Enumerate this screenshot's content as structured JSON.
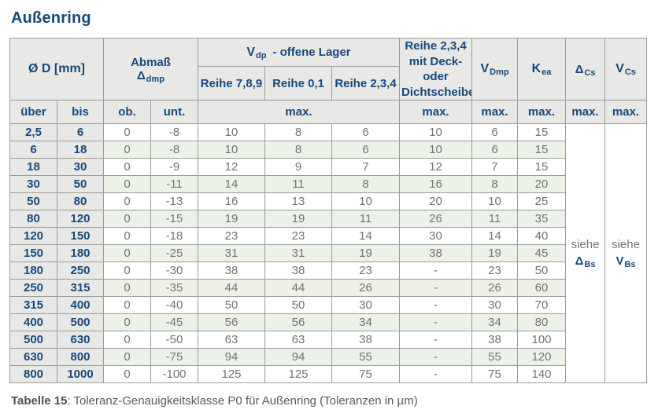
{
  "title": "Außenring",
  "caption": {
    "label": "Tabelle 15",
    "text": ": Toleranz-Genauigkeitsklasse P0 für Außenring (Toleranzen in µm)"
  },
  "colors": {
    "navy": "#17497B",
    "header_bg": "#E8E8E6",
    "row_green": "#ECF2E8",
    "data_text": "#737373",
    "border": "#9C9C99"
  },
  "table": {
    "header": {
      "diameter": "Ø D  [mm]",
      "abmass": {
        "line1": "Abmaß",
        "sym": "Δ",
        "sub": "dmp"
      },
      "vdp_group": {
        "sym": "V",
        "sub": "dp",
        "rest": "-  offene Lager"
      },
      "reihe_cols": [
        "Reihe 7,8,9",
        "Reihe 0,1",
        "Reihe 2,3,4"
      ],
      "deck": [
        "Reihe 2,3,4",
        "mit Deck- oder",
        "Dichtscheiben"
      ],
      "vdmp": {
        "sym": "V",
        "sub": "Dmp"
      },
      "kea": {
        "sym": "K",
        "sub": "ea"
      },
      "dcs": {
        "sym": "Δ",
        "sub": "Cs"
      },
      "vcs": {
        "sym": "V",
        "sub": "Cs"
      },
      "ueber": "über",
      "bis": "bis",
      "ob": "ob.",
      "unt": "unt.",
      "max": "max."
    },
    "rows": [
      {
        "ueber": "2,5",
        "bis": "6",
        "ob": "0",
        "unt": "-8",
        "reihe789": "10",
        "reihe01": "8",
        "reihe234": "6",
        "deck": "10",
        "vdmp": "6",
        "kea": "15"
      },
      {
        "ueber": "6",
        "bis": "18",
        "ob": "0",
        "unt": "-8",
        "reihe789": "10",
        "reihe01": "8",
        "reihe234": "6",
        "deck": "10",
        "vdmp": "6",
        "kea": "15"
      },
      {
        "ueber": "18",
        "bis": "30",
        "ob": "0",
        "unt": "-9",
        "reihe789": "12",
        "reihe01": "9",
        "reihe234": "7",
        "deck": "12",
        "vdmp": "7",
        "kea": "15"
      },
      {
        "ueber": "30",
        "bis": "50",
        "ob": "0",
        "unt": "-11",
        "reihe789": "14",
        "reihe01": "11",
        "reihe234": "8",
        "deck": "16",
        "vdmp": "8",
        "kea": "20"
      },
      {
        "ueber": "50",
        "bis": "80",
        "ob": "0",
        "unt": "-13",
        "reihe789": "16",
        "reihe01": "13",
        "reihe234": "10",
        "deck": "20",
        "vdmp": "10",
        "kea": "25"
      },
      {
        "ueber": "80",
        "bis": "120",
        "ob": "0",
        "unt": "-15",
        "reihe789": "19",
        "reihe01": "19",
        "reihe234": "11",
        "deck": "26",
        "vdmp": "11",
        "kea": "35"
      },
      {
        "ueber": "120",
        "bis": "150",
        "ob": "0",
        "unt": "-18",
        "reihe789": "23",
        "reihe01": "23",
        "reihe234": "14",
        "deck": "30",
        "vdmp": "14",
        "kea": "40"
      },
      {
        "ueber": "150",
        "bis": "180",
        "ob": "0",
        "unt": "-25",
        "reihe789": "31",
        "reihe01": "31",
        "reihe234": "19",
        "deck": "38",
        "vdmp": "19",
        "kea": "45"
      },
      {
        "ueber": "180",
        "bis": "250",
        "ob": "0",
        "unt": "-30",
        "reihe789": "38",
        "reihe01": "38",
        "reihe234": "23",
        "deck": "-",
        "vdmp": "23",
        "kea": "50"
      },
      {
        "ueber": "250",
        "bis": "315",
        "ob": "0",
        "unt": "-35",
        "reihe789": "44",
        "reihe01": "44",
        "reihe234": "26",
        "deck": "-",
        "vdmp": "26",
        "kea": "60"
      },
      {
        "ueber": "315",
        "bis": "400",
        "ob": "0",
        "unt": "-40",
        "reihe789": "50",
        "reihe01": "50",
        "reihe234": "30",
        "deck": "-",
        "vdmp": "30",
        "kea": "70"
      },
      {
        "ueber": "400",
        "bis": "500",
        "ob": "0",
        "unt": "-45",
        "reihe789": "56",
        "reihe01": "56",
        "reihe234": "34",
        "deck": "-",
        "vdmp": "34",
        "kea": "80"
      },
      {
        "ueber": "500",
        "bis": "630",
        "ob": "0",
        "unt": "-50",
        "reihe789": "63",
        "reihe01": "63",
        "reihe234": "38",
        "deck": "-",
        "vdmp": "38",
        "kea": "100"
      },
      {
        "ueber": "630",
        "bis": "800",
        "ob": "0",
        "unt": "-75",
        "reihe789": "94",
        "reihe01": "94",
        "reihe234": "55",
        "deck": "-",
        "vdmp": "55",
        "kea": "120"
      },
      {
        "ueber": "800",
        "bis": "1000",
        "ob": "0",
        "unt": "-100",
        "reihe789": "125",
        "reihe01": "125",
        "reihe234": "75",
        "deck": "-",
        "vdmp": "75",
        "kea": "140"
      }
    ],
    "siehe": [
      {
        "word": "siehe",
        "sym": "Δ",
        "sub": "Bs"
      },
      {
        "word": "siehe",
        "sym": "V",
        "sub": "Bs"
      }
    ]
  }
}
